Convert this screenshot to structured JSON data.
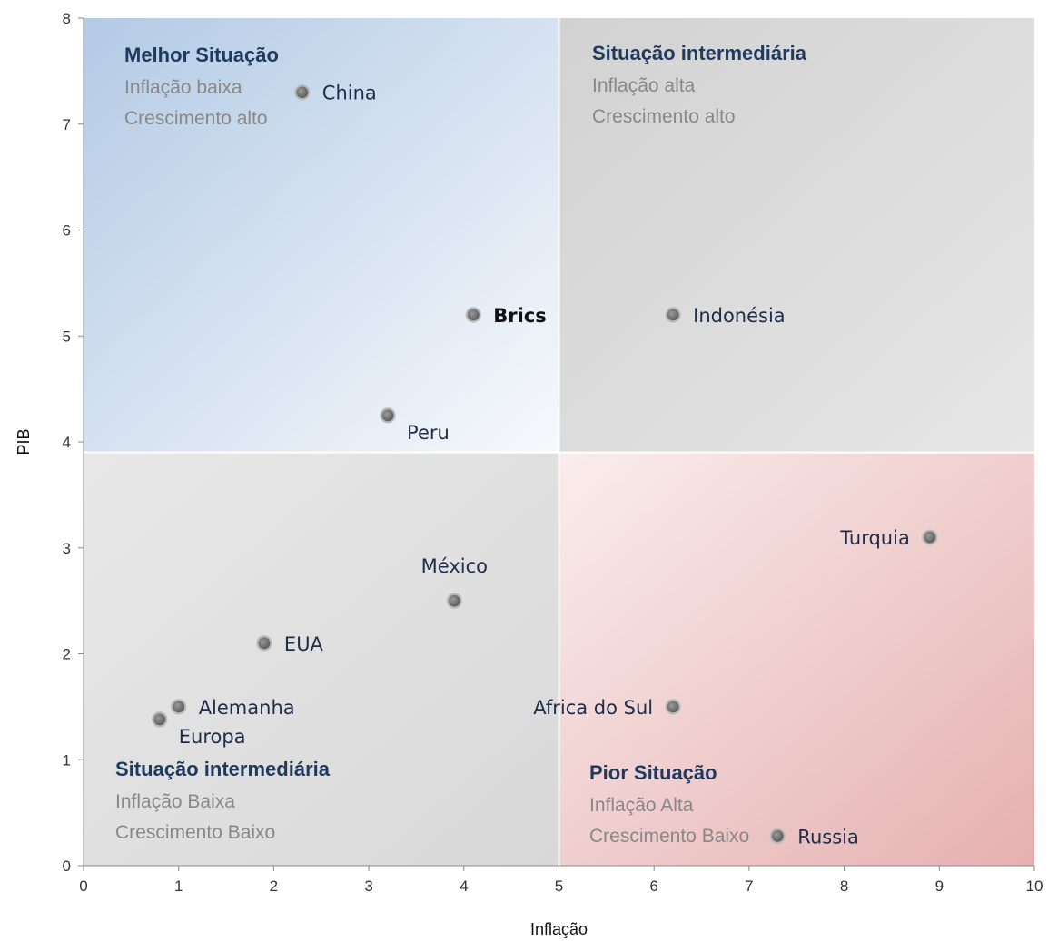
{
  "chart_data": {
    "type": "scatter",
    "xlabel": "Inflação",
    "ylabel": "PIB",
    "xlim": [
      0,
      10
    ],
    "ylim": [
      0,
      8
    ],
    "xticks": [
      0,
      1,
      2,
      3,
      4,
      5,
      6,
      7,
      8,
      9,
      10
    ],
    "yticks": [
      0,
      1,
      2,
      3,
      4,
      5,
      6,
      7,
      8
    ],
    "quadrant_split": {
      "x": 5,
      "y": 3.9
    },
    "quadrants": [
      {
        "position": "top-left",
        "title": "Melhor Situação",
        "lines": [
          "Inflação baixa",
          "Crescimento alto"
        ],
        "color": "#BBD0E6"
      },
      {
        "position": "top-right",
        "title": "Situação intermediária",
        "lines": [
          "Inflação alta",
          "Crescimento alto"
        ],
        "color": "#DADADA"
      },
      {
        "position": "bottom-left",
        "title": "Situação intermediária",
        "lines": [
          "Inflação Baixa",
          "Crescimento Baixo"
        ],
        "color": "#DEDEDE"
      },
      {
        "position": "bottom-right",
        "title": "Pior Situação",
        "lines": [
          "Inflação Alta",
          "Crescimento Baixo"
        ],
        "color": "#E9BBBB"
      }
    ],
    "points": [
      {
        "label": "China",
        "x": 2.3,
        "y": 7.3,
        "label_pos": "right"
      },
      {
        "label": "Brics",
        "x": 4.1,
        "y": 5.2,
        "label_pos": "right",
        "bold": true
      },
      {
        "label": "Indonésia",
        "x": 6.2,
        "y": 5.2,
        "label_pos": "right"
      },
      {
        "label": "Peru",
        "x": 3.2,
        "y": 4.25,
        "label_pos": "below-right"
      },
      {
        "label": "Turquia",
        "x": 8.9,
        "y": 3.1,
        "label_pos": "left"
      },
      {
        "label": "México",
        "x": 3.9,
        "y": 2.5,
        "label_pos": "above"
      },
      {
        "label": "EUA",
        "x": 1.9,
        "y": 2.1,
        "label_pos": "right"
      },
      {
        "label": "Alemanha",
        "x": 1.0,
        "y": 1.5,
        "label_pos": "right"
      },
      {
        "label": "Europa",
        "x": 0.8,
        "y": 1.38,
        "label_pos": "below-right"
      },
      {
        "label": "Africa do Sul",
        "x": 6.2,
        "y": 1.5,
        "label_pos": "left"
      },
      {
        "label": "Russia",
        "x": 7.3,
        "y": 0.28,
        "label_pos": "right"
      }
    ]
  }
}
